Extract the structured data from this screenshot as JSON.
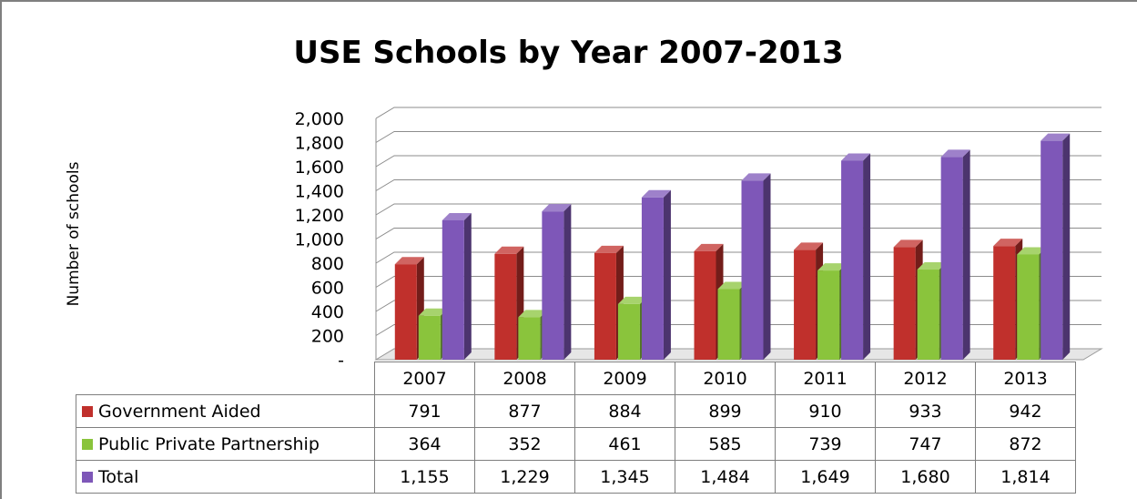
{
  "chart_data": {
    "type": "bar",
    "title": "USE Schools by Year 2007-2013",
    "ylabel": "Number of schools",
    "xlabel": "",
    "categories": [
      "2007",
      "2008",
      "2009",
      "2010",
      "2011",
      "2012",
      "2013"
    ],
    "ylim": [
      0,
      2000
    ],
    "yticks": [
      "-",
      "200",
      "400",
      "600",
      "800",
      "1,000",
      "1,200",
      "1,400",
      "1,600",
      "1,800",
      "2,000"
    ],
    "grid": true,
    "legend_placement": "data-table-below",
    "series": [
      {
        "name": "Government Aided",
        "color": "#c0302c",
        "values": [
          791,
          877,
          884,
          899,
          910,
          933,
          942
        ],
        "labels": [
          "791",
          "877",
          "884",
          "899",
          "910",
          "933",
          "942"
        ]
      },
      {
        "name": "Public Private Partnership",
        "color": "#8ac43c",
        "values": [
          364,
          352,
          461,
          585,
          739,
          747,
          872
        ],
        "labels": [
          "364",
          "352",
          "461",
          "585",
          "739",
          "747",
          "872"
        ]
      },
      {
        "name": "Total",
        "color": "#7e57b8",
        "values": [
          1155,
          1229,
          1345,
          1484,
          1649,
          1680,
          1814
        ],
        "labels": [
          "1,155",
          "1,229",
          "1,345",
          "1,484",
          "1,649",
          "1,680",
          "1,814"
        ]
      }
    ]
  }
}
